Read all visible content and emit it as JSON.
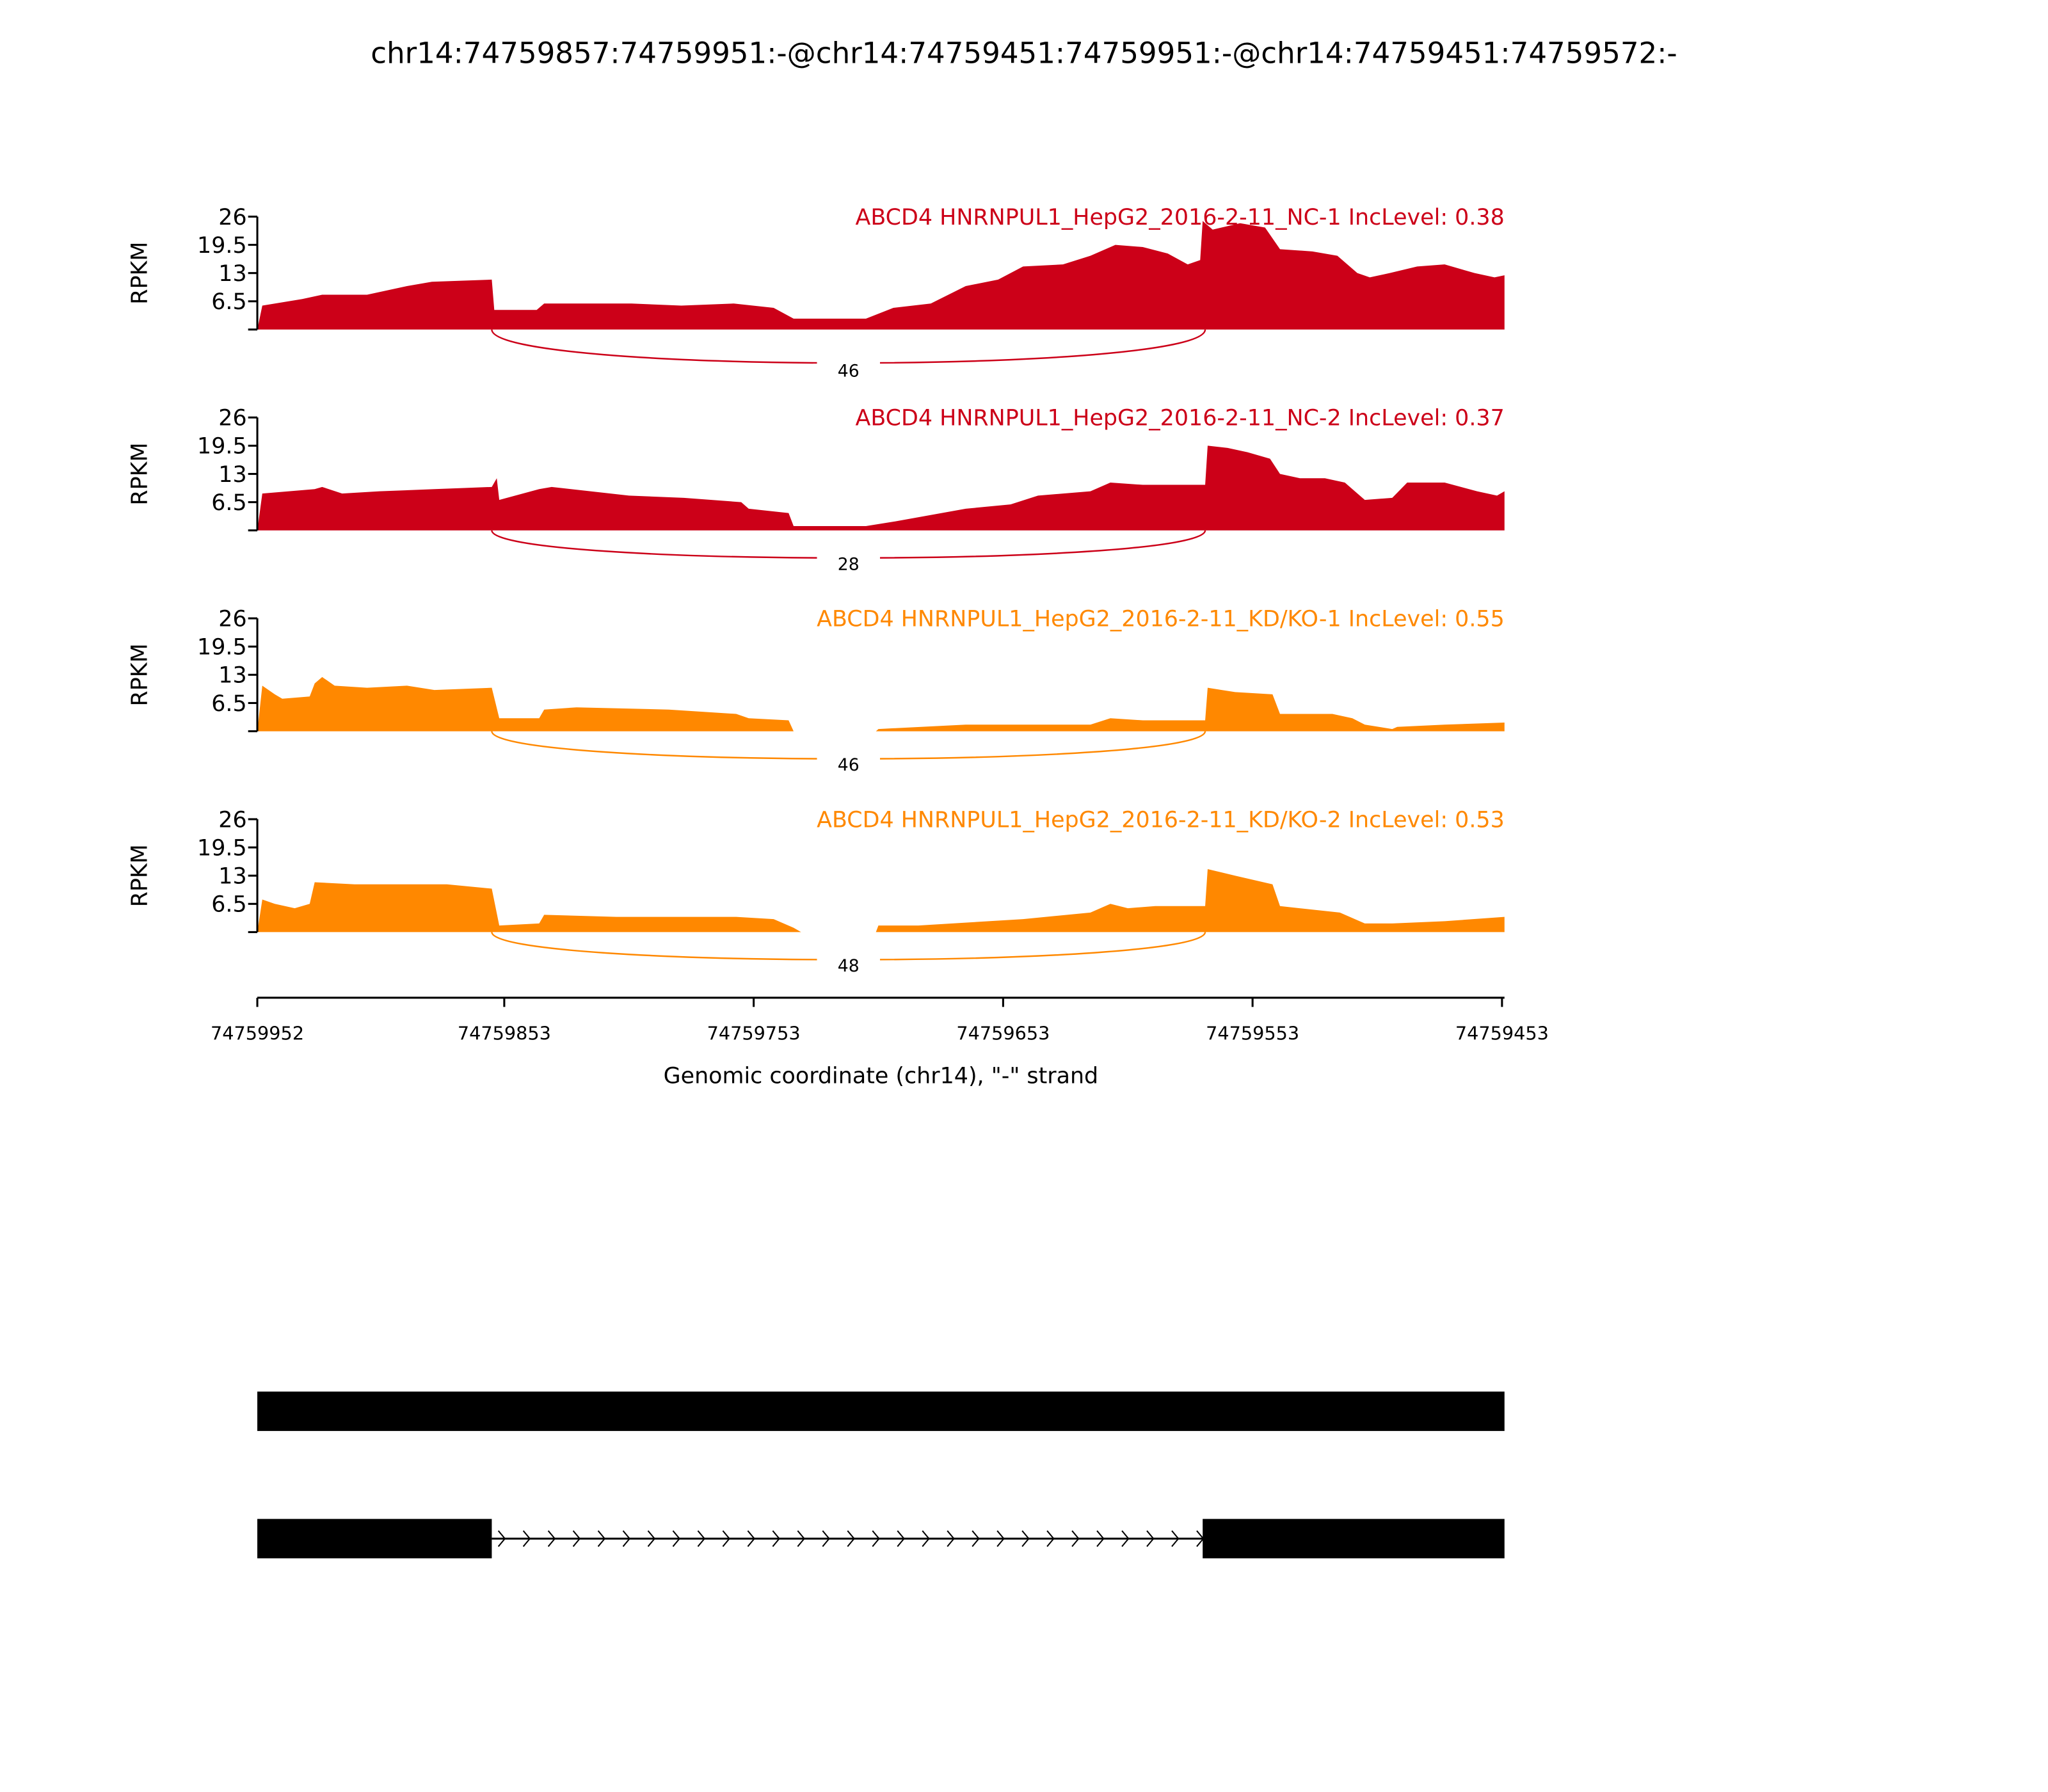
{
  "chart_data": {
    "type": "area",
    "title": "chr14:74759857:74759951:-@chr14:74759451:74759951:-@chr14:74759451:74759572:-",
    "xlabel": "Genomic coordinate (chr14), \"-\" strand",
    "ylabel": "RPKM",
    "x_start": 74759952,
    "x_end": 74759452,
    "x_ticks": [
      "74759952",
      "74759853",
      "74759753",
      "74759653",
      "74759553",
      "74759453"
    ],
    "y_ticks": [
      "6.5",
      "13",
      "19.5",
      "26"
    ],
    "ylim": [
      0,
      26
    ],
    "position_unit": "bp offset from 74759952 along - strand",
    "series": [
      {
        "name": "ABCD4 HNRNPUL1_HepG2_2016-2-11_NC-1 IncLevel: 0.38",
        "color": "#cc0018",
        "junction": {
          "from": 94,
          "to": 380,
          "count": "46"
        },
        "points": [
          [
            0,
            0
          ],
          [
            2,
            5.5
          ],
          [
            18,
            7
          ],
          [
            26,
            8
          ],
          [
            44,
            8
          ],
          [
            60,
            10
          ],
          [
            70,
            11
          ],
          [
            94,
            11.5
          ],
          [
            95,
            4.5
          ],
          [
            112,
            4.5
          ],
          [
            115,
            6
          ],
          [
            150,
            6
          ],
          [
            170,
            5.5
          ],
          [
            191,
            6
          ],
          [
            207,
            5
          ],
          [
            215,
            2.5
          ],
          [
            244,
            2.5
          ],
          [
            255,
            5
          ],
          [
            270,
            6
          ],
          [
            284,
            10
          ],
          [
            297,
            11.5
          ],
          [
            307,
            14.5
          ],
          [
            323,
            15
          ],
          [
            334,
            17
          ],
          [
            344,
            19.5
          ],
          [
            355,
            19
          ],
          [
            365,
            17.5
          ],
          [
            373,
            15
          ],
          [
            378,
            16
          ],
          [
            379,
            25
          ],
          [
            383,
            23
          ],
          [
            394,
            24.5
          ],
          [
            404,
            23.5
          ],
          [
            410,
            18.5
          ],
          [
            423,
            18
          ],
          [
            433,
            17
          ],
          [
            441,
            13
          ],
          [
            446,
            12
          ],
          [
            454,
            13
          ],
          [
            465,
            14.5
          ],
          [
            476,
            15
          ],
          [
            488,
            13
          ],
          [
            496,
            12
          ],
          [
            500,
            12.5
          ]
        ]
      },
      {
        "name": "ABCD4 HNRNPUL1_HepG2_2016-2-11_NC-2 IncLevel: 0.37",
        "color": "#cc0018",
        "junction": {
          "from": 94,
          "to": 380,
          "count": "28"
        },
        "points": [
          [
            0,
            0
          ],
          [
            2,
            8.5
          ],
          [
            23,
            9.5
          ],
          [
            26,
            10
          ],
          [
            34,
            8.5
          ],
          [
            49,
            9
          ],
          [
            71,
            9.5
          ],
          [
            94,
            10
          ],
          [
            96,
            12
          ],
          [
            97,
            7
          ],
          [
            113,
            9.5
          ],
          [
            118,
            10
          ],
          [
            149,
            8
          ],
          [
            171,
            7.5
          ],
          [
            194,
            6.5
          ],
          [
            197,
            5
          ],
          [
            213,
            4
          ],
          [
            215,
            1
          ],
          [
            244,
            1
          ],
          [
            255,
            2
          ],
          [
            284,
            5
          ],
          [
            302,
            6
          ],
          [
            313,
            8
          ],
          [
            334,
            9
          ],
          [
            342,
            11
          ],
          [
            355,
            10.5
          ],
          [
            371,
            10.5
          ],
          [
            380,
            10.5
          ],
          [
            381,
            19.5
          ],
          [
            389,
            19
          ],
          [
            397,
            18
          ],
          [
            406,
            16.5
          ],
          [
            410,
            13
          ],
          [
            418,
            12
          ],
          [
            428,
            12
          ],
          [
            436,
            11
          ],
          [
            444,
            7
          ],
          [
            455,
            7.5
          ],
          [
            461,
            11
          ],
          [
            476,
            11
          ],
          [
            489,
            9
          ],
          [
            497,
            8
          ],
          [
            500,
            9
          ]
        ]
      },
      {
        "name": "ABCD4 HNRNPUL1_HepG2_2016-2-11_KD/KO-1 IncLevel: 0.55",
        "color": "#ff8800",
        "junction": {
          "from": 94,
          "to": 380,
          "count": "46"
        },
        "points": [
          [
            0,
            0
          ],
          [
            2,
            10.5
          ],
          [
            7,
            8.5
          ],
          [
            10,
            7.5
          ],
          [
            21,
            8
          ],
          [
            23,
            11
          ],
          [
            26,
            12.5
          ],
          [
            31,
            10.5
          ],
          [
            44,
            10
          ],
          [
            60,
            10.5
          ],
          [
            71,
            9.5
          ],
          [
            94,
            10
          ],
          [
            97,
            3
          ],
          [
            113,
            3
          ],
          [
            115,
            5
          ],
          [
            128,
            5.5
          ],
          [
            165,
            5
          ],
          [
            192,
            4
          ],
          [
            197,
            3
          ],
          [
            213,
            2.5
          ],
          [
            215,
            0
          ],
          [
            248,
            0
          ],
          [
            249,
            0.5
          ],
          [
            284,
            1.5
          ],
          [
            334,
            1.5
          ],
          [
            342,
            3
          ],
          [
            355,
            2.5
          ],
          [
            380,
            2.5
          ],
          [
            381,
            10
          ],
          [
            392,
            9
          ],
          [
            407,
            8.5
          ],
          [
            410,
            4
          ],
          [
            431,
            4
          ],
          [
            439,
            3
          ],
          [
            444,
            1.5
          ],
          [
            455,
            0.5
          ],
          [
            457,
            1
          ],
          [
            476,
            1.5
          ],
          [
            500,
            2
          ]
        ]
      },
      {
        "name": "ABCD4 HNRNPUL1_HepG2_2016-2-11_KD/KO-2 IncLevel: 0.53",
        "color": "#ff8800",
        "junction": {
          "from": 94,
          "to": 380,
          "count": "48"
        },
        "points": [
          [
            0,
            0
          ],
          [
            2,
            7.5
          ],
          [
            7,
            6.5
          ],
          [
            15,
            5.5
          ],
          [
            21,
            6.5
          ],
          [
            23,
            11.5
          ],
          [
            39,
            11
          ],
          [
            55,
            11
          ],
          [
            76,
            11
          ],
          [
            94,
            10
          ],
          [
            97,
            1.5
          ],
          [
            113,
            2
          ],
          [
            115,
            4
          ],
          [
            144,
            3.5
          ],
          [
            165,
            3.5
          ],
          [
            192,
            3.5
          ],
          [
            207,
            3
          ],
          [
            215,
            1
          ],
          [
            218,
            0
          ],
          [
            248,
            0
          ],
          [
            249,
            1.5
          ],
          [
            265,
            1.5
          ],
          [
            307,
            3
          ],
          [
            334,
            4.5
          ],
          [
            342,
            6.5
          ],
          [
            349,
            5.5
          ],
          [
            360,
            6
          ],
          [
            380,
            6
          ],
          [
            381,
            14.5
          ],
          [
            392,
            13
          ],
          [
            407,
            11
          ],
          [
            410,
            6
          ],
          [
            434,
            4.5
          ],
          [
            444,
            2
          ],
          [
            455,
            2
          ],
          [
            476,
            2.5
          ],
          [
            500,
            3.5
          ]
        ]
      }
    ],
    "gene_models": [
      {
        "exons": [
          [
            0,
            500
          ]
        ]
      },
      {
        "exons": [
          [
            0,
            94
          ],
          [
            379,
            500
          ]
        ],
        "intron": [
          94,
          379
        ]
      }
    ]
  }
}
